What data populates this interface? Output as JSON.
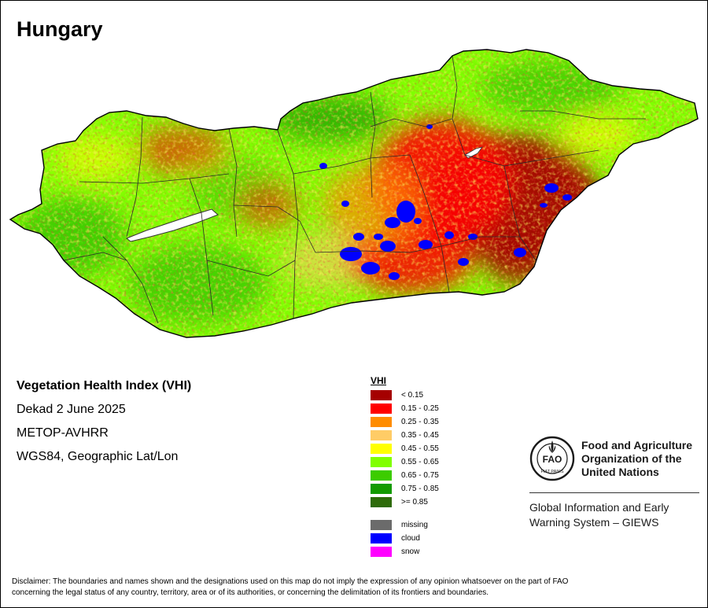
{
  "map": {
    "title": "Hungary"
  },
  "info": {
    "product": "Vegetation Health Index (VHI)",
    "period": "Dekad 2 June 2025",
    "sensor": "METOP-AVHRR",
    "projection": "WGS84, Geographic Lat/Lon"
  },
  "legend": {
    "title": "VHI",
    "classes": [
      {
        "label": "< 0.15",
        "color": "#a50000"
      },
      {
        "label": "0.15 - 0.25",
        "color": "#ff0000"
      },
      {
        "label": "0.25 - 0.35",
        "color": "#ff8c00"
      },
      {
        "label": "0.35 - 0.45",
        "color": "#ffcc66"
      },
      {
        "label": "0.45 - 0.55",
        "color": "#ffff00"
      },
      {
        "label": "0.55 - 0.65",
        "color": "#80ff00"
      },
      {
        "label": "0.65 - 0.75",
        "color": "#3ccc00"
      },
      {
        "label": "0.75 - 0.85",
        "color": "#139b00"
      },
      {
        "label": ">= 0.85",
        "color": "#2e6b0a"
      }
    ],
    "special": [
      {
        "label": "missing",
        "color": "#6b6b6b"
      },
      {
        "label": "cloud",
        "color": "#0000ff"
      },
      {
        "label": "snow",
        "color": "#ff00ff"
      }
    ]
  },
  "organization": {
    "name_line1": "Food and Agriculture",
    "name_line2": "Organization of the",
    "name_line3": "United Nations",
    "logo_text": "FAO",
    "logo_motto": "FIAT PANIS",
    "system_line1": "Global Information and Early",
    "system_line2": "Warning System – GIEWS"
  },
  "disclaimer": {
    "line1": "Disclaimer: The boundaries and names shown and the designations used on this map do not imply the expression of any opinion whatsoever on the part of FAO",
    "line2": "concerning the legal status of any country, territory, area or of its authorities, or concerning the delimitation of its frontiers and boundaries."
  }
}
